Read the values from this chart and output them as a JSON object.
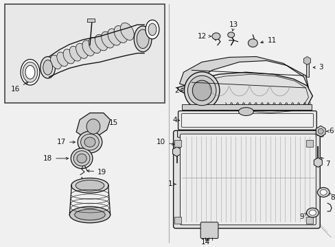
{
  "bg_color": "#f0f0f0",
  "line_color": "#111111",
  "label_color": "#000000",
  "inset_bg": "#e8e8e8",
  "part_bg": "#ffffff",
  "label_fontsize": 7.5,
  "arrow_lw": 0.6,
  "part_lw": 0.9
}
